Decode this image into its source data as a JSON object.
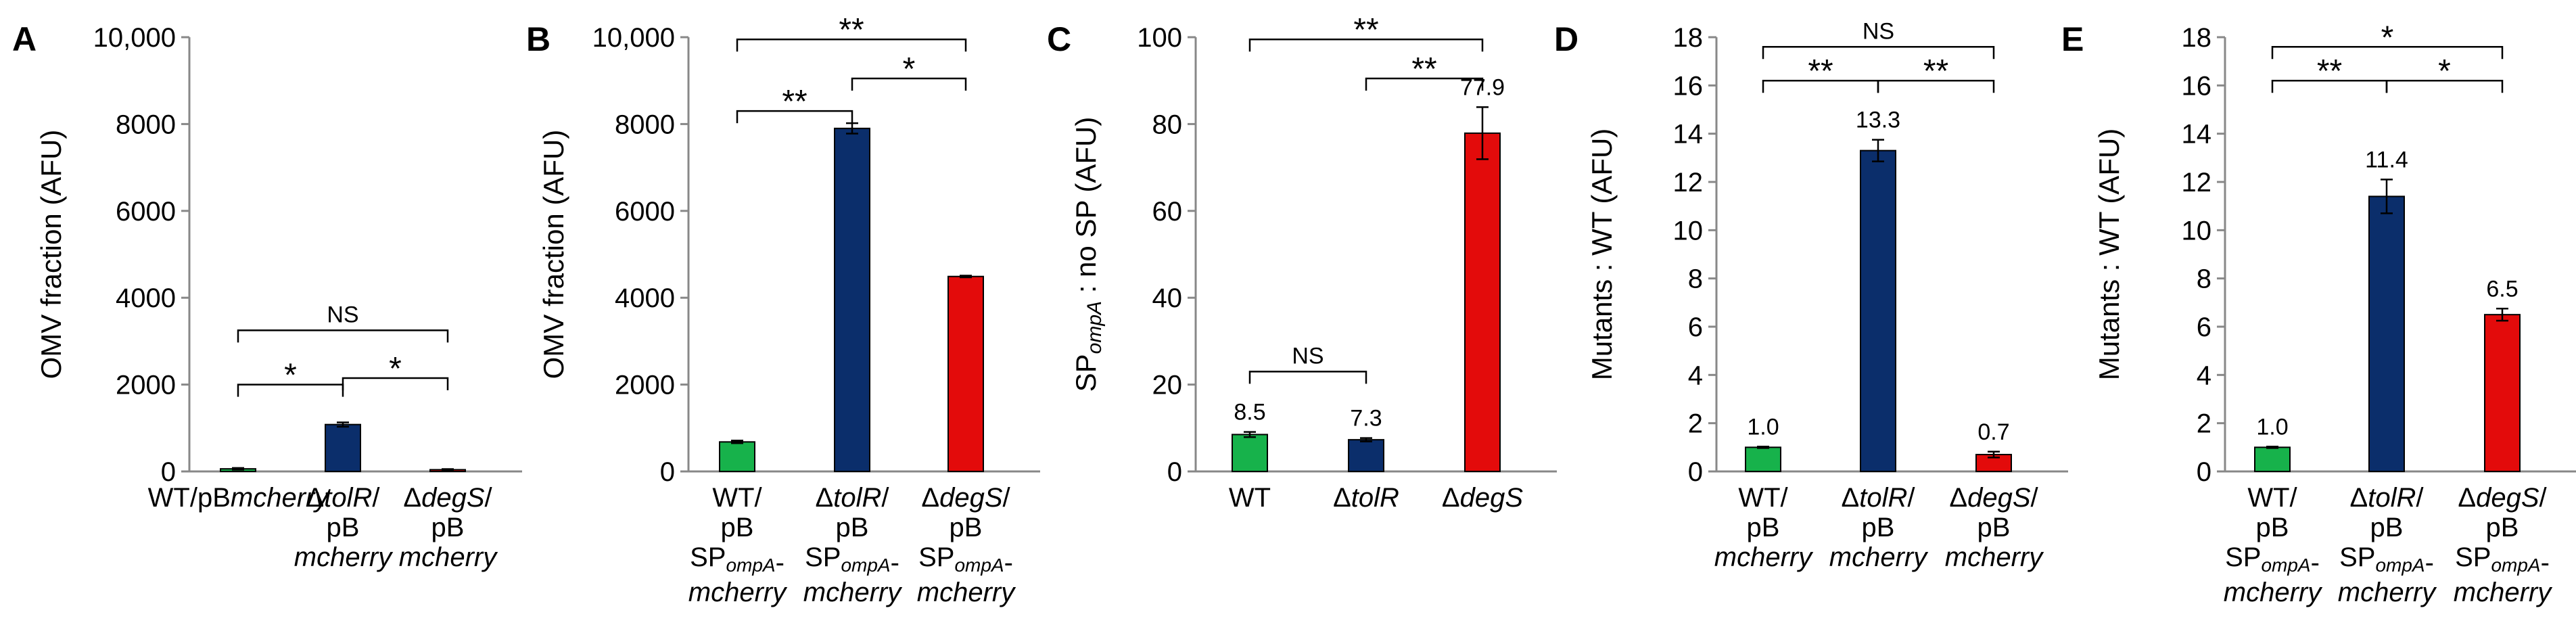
{
  "colors": {
    "wt": "#17B24B",
    "tolR": "#0B2E6B",
    "degS": "#E30B0B",
    "axis": "#888888",
    "text": "#000000"
  },
  "chart_data": [
    {
      "panel": "A",
      "type": "bar",
      "ylabel": "OMV fraction (AFU)",
      "ylim": [
        0,
        10000
      ],
      "yticks": [
        "0",
        "2000",
        "4000",
        "6000",
        "8000",
        "10,000"
      ],
      "categories": [
        [
          [
            "WT/",
            ""
          ],
          [
            "pB",
            ""
          ],
          [
            "mcherry",
            "it"
          ]
        ],
        [
          [
            "Δ",
            ""
          ],
          [
            "tolR",
            "it"
          ],
          [
            "/",
            ""
          ],
          [
            "|",
            ""
          ],
          [
            "pB",
            ""
          ],
          [
            "|",
            ""
          ],
          [
            "mcherry",
            "it"
          ]
        ],
        [
          [
            "Δ",
            ""
          ],
          [
            "degS",
            "it"
          ],
          [
            "/",
            ""
          ],
          [
            "|",
            ""
          ],
          [
            "pB",
            ""
          ],
          [
            "|",
            ""
          ],
          [
            "mcherry",
            "it"
          ]
        ]
      ],
      "values": [
        60,
        1080,
        40
      ],
      "errors": [
        20,
        50,
        15
      ],
      "value_labels": [
        "",
        "",
        ""
      ],
      "comparisons": [
        {
          "from": 0,
          "to": 1,
          "label": "*",
          "level": 2000
        },
        {
          "from": 1,
          "to": 2,
          "label": "*",
          "level": 2150
        },
        {
          "from": 0,
          "to": 2,
          "label": "NS",
          "level": 3250
        }
      ]
    },
    {
      "panel": "B",
      "type": "bar",
      "ylabel": "OMV fraction (AFU)",
      "ylim": [
        0,
        10000
      ],
      "yticks": [
        "0",
        "2000",
        "4000",
        "6000",
        "8000",
        "10,000"
      ],
      "categories": [
        [
          [
            "WT/",
            ""
          ],
          [
            "|",
            ""
          ],
          [
            "pB",
            ""
          ],
          [
            "|",
            ""
          ],
          [
            "SP",
            ""
          ],
          [
            "ompA",
            "sub"
          ],
          [
            "-",
            ""
          ],
          [
            "|",
            ""
          ],
          [
            "mcherry",
            "it"
          ]
        ],
        [
          [
            "Δ",
            ""
          ],
          [
            "tolR",
            "it"
          ],
          [
            "/",
            ""
          ],
          [
            "|",
            ""
          ],
          [
            "pB",
            ""
          ],
          [
            "|",
            ""
          ],
          [
            "SP",
            ""
          ],
          [
            "ompA",
            "sub"
          ],
          [
            "-",
            ""
          ],
          [
            "|",
            ""
          ],
          [
            "mcherry",
            "it"
          ]
        ],
        [
          [
            "Δ",
            ""
          ],
          [
            "degS",
            "it"
          ],
          [
            "/",
            ""
          ],
          [
            "|",
            ""
          ],
          [
            "pB",
            ""
          ],
          [
            "|",
            ""
          ],
          [
            "SP",
            ""
          ],
          [
            "ompA",
            "sub"
          ],
          [
            "-",
            ""
          ],
          [
            "|",
            ""
          ],
          [
            "mcherry",
            "it"
          ]
        ]
      ],
      "values": [
        680,
        7900,
        4490
      ],
      "errors": [
        30,
        120,
        20
      ],
      "value_labels": [
        "",
        "",
        ""
      ],
      "comparisons": [
        {
          "from": 0,
          "to": 1,
          "label": "**",
          "level": 8300
        },
        {
          "from": 1,
          "to": 2,
          "label": "*",
          "level": 9050
        },
        {
          "from": 0,
          "to": 2,
          "label": "**",
          "level": 9950
        }
      ]
    },
    {
      "panel": "C",
      "type": "bar",
      "ylabel_parts": [
        [
          "SP",
          ""
        ],
        [
          "ompA",
          "sub"
        ],
        [
          " : no SP (AFU)",
          ""
        ]
      ],
      "ylim": [
        0,
        100
      ],
      "yticks": [
        "0",
        "20",
        "40",
        "60",
        "80",
        "100"
      ],
      "categories": [
        [
          [
            "WT",
            ""
          ]
        ],
        [
          [
            "Δ",
            ""
          ],
          [
            "tolR",
            "it"
          ]
        ],
        [
          [
            "Δ",
            ""
          ],
          [
            "degS",
            "it"
          ]
        ]
      ],
      "values": [
        8.5,
        7.3,
        77.9
      ],
      "errors": [
        0.6,
        0.4,
        6.0
      ],
      "value_labels": [
        "8.5",
        "7.3",
        "77.9"
      ],
      "comparisons": [
        {
          "from": 0,
          "to": 1,
          "label": "NS",
          "level": 23
        },
        {
          "from": 1,
          "to": 2,
          "label": "**",
          "level": 90.5
        },
        {
          "from": 0,
          "to": 2,
          "label": "**",
          "level": 99.5
        }
      ]
    },
    {
      "panel": "D",
      "type": "bar",
      "ylabel": "Mutants : WT (AFU)",
      "ylim": [
        0,
        18
      ],
      "yticks": [
        "0",
        "2",
        "4",
        "6",
        "8",
        "10",
        "12",
        "14",
        "16",
        "18"
      ],
      "categories": [
        [
          [
            "WT/",
            ""
          ],
          [
            "|",
            ""
          ],
          [
            "pB",
            ""
          ],
          [
            "|",
            ""
          ],
          [
            "mcherry",
            "it"
          ]
        ],
        [
          [
            "Δ",
            ""
          ],
          [
            "tolR",
            "it"
          ],
          [
            "/",
            ""
          ],
          [
            "|",
            ""
          ],
          [
            "pB",
            ""
          ],
          [
            "|",
            ""
          ],
          [
            "mcherry",
            "it"
          ]
        ],
        [
          [
            "Δ",
            ""
          ],
          [
            "degS",
            "it"
          ],
          [
            "/",
            ""
          ],
          [
            "|",
            ""
          ],
          [
            "pB",
            ""
          ],
          [
            "|",
            ""
          ],
          [
            "mcherry",
            "it"
          ]
        ]
      ],
      "values": [
        1.0,
        13.3,
        0.7
      ],
      "errors": [
        0.03,
        0.45,
        0.12
      ],
      "value_labels": [
        "1.0",
        "13.3",
        "0.7"
      ],
      "comparisons": [
        {
          "from": 0,
          "to": 1,
          "label": "**",
          "level": 16.2
        },
        {
          "from": 1,
          "to": 2,
          "label": "**",
          "level": 16.2
        },
        {
          "from": 0,
          "to": 2,
          "label": "NS",
          "level": 17.6
        }
      ]
    },
    {
      "panel": "E",
      "type": "bar",
      "ylabel": "Mutants : WT (AFU)",
      "ylim": [
        0,
        18
      ],
      "yticks": [
        "0",
        "2",
        "4",
        "6",
        "8",
        "10",
        "12",
        "14",
        "16",
        "18"
      ],
      "categories": [
        [
          [
            "WT/",
            ""
          ],
          [
            "|",
            ""
          ],
          [
            "pB",
            ""
          ],
          [
            "|",
            ""
          ],
          [
            "SP",
            ""
          ],
          [
            "ompA",
            "sub"
          ],
          [
            "-",
            ""
          ],
          [
            "|",
            ""
          ],
          [
            "mcherry",
            "it"
          ]
        ],
        [
          [
            "Δ",
            ""
          ],
          [
            "tolR",
            "it"
          ],
          [
            "/",
            ""
          ],
          [
            "|",
            ""
          ],
          [
            "pB",
            ""
          ],
          [
            "|",
            ""
          ],
          [
            "SP",
            ""
          ],
          [
            "ompA",
            "sub"
          ],
          [
            "-",
            ""
          ],
          [
            "|",
            ""
          ],
          [
            "mcherry",
            "it"
          ]
        ],
        [
          [
            "Δ",
            ""
          ],
          [
            "degS",
            "it"
          ],
          [
            "/",
            ""
          ],
          [
            "|",
            ""
          ],
          [
            "pB",
            ""
          ],
          [
            "|",
            ""
          ],
          [
            "SP",
            ""
          ],
          [
            "ompA",
            "sub"
          ],
          [
            "-",
            ""
          ],
          [
            "|",
            ""
          ],
          [
            "mcherry",
            "it"
          ]
        ]
      ],
      "values": [
        1.0,
        11.4,
        6.5
      ],
      "errors": [
        0.03,
        0.7,
        0.25
      ],
      "value_labels": [
        "1.0",
        "11.4",
        "6.5"
      ],
      "comparisons": [
        {
          "from": 0,
          "to": 1,
          "label": "**",
          "level": 16.2
        },
        {
          "from": 1,
          "to": 2,
          "label": "*",
          "level": 16.2
        },
        {
          "from": 0,
          "to": 2,
          "label": "*",
          "level": 17.6
        }
      ]
    }
  ]
}
